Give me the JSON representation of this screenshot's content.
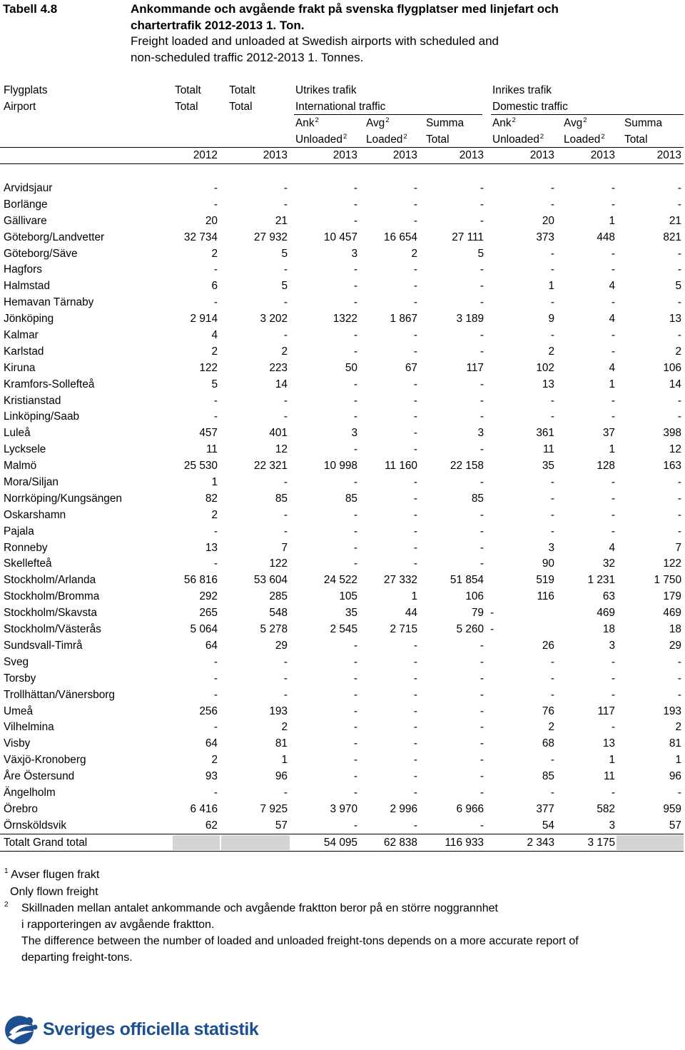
{
  "table": {
    "number": "Tabell 4.8",
    "title_sv_1": "Ankommande och avgående frakt på svenska flygplatser med linjefart och",
    "title_sv_2": "chartertrafik 2012-2013 1. Ton.",
    "title_en_1": "Freight loaded and unloaded at Swedish airports with scheduled and",
    "title_en_2": "non-scheduled traffic 2012-2013 1. Tonnes."
  },
  "header": {
    "airport_sv": "Flygplats",
    "airport_en": "Airport",
    "total_sv": "Totalt",
    "total_en": "Total",
    "intl_sv": "Utrikes trafik",
    "intl_en": "International traffic",
    "dom_sv": "Inrikes trafik",
    "dom_en": "Domestic traffic",
    "ank": "Ank",
    "unloaded": "Unloaded",
    "avg": "Avg",
    "loaded": "Loaded",
    "summa": "Summa",
    "total": "Total",
    "note_mark": "2",
    "years": [
      "2012",
      "2013",
      "2013",
      "2013",
      "2013",
      "2013",
      "2013",
      "2013"
    ]
  },
  "rows": [
    {
      "name": "Arvidsjaur",
      "v": [
        "-",
        "-",
        "-",
        "-",
        "-",
        "-",
        "-",
        "-"
      ]
    },
    {
      "name": "Borlänge",
      "v": [
        "-",
        "-",
        "-",
        "-",
        "-",
        "-",
        "-",
        "-"
      ]
    },
    {
      "name": "Gällivare",
      "v": [
        "20",
        "21",
        "-",
        "-",
        "-",
        "20",
        "1",
        "21"
      ]
    },
    {
      "name": "Göteborg/Landvetter",
      "v": [
        "32 734",
        "27 932",
        "10 457",
        "16 654",
        "27 111",
        "373",
        "448",
        "821"
      ]
    },
    {
      "name": "Göteborg/Säve",
      "v": [
        "2",
        "5",
        "3",
        "2",
        "5",
        "-",
        "-",
        "-"
      ]
    },
    {
      "name": "Hagfors",
      "v": [
        "-",
        "-",
        "-",
        "-",
        "-",
        "-",
        "-",
        "-"
      ]
    },
    {
      "name": "Halmstad",
      "v": [
        "6",
        "5",
        "-",
        "-",
        "-",
        "1",
        "4",
        "5"
      ]
    },
    {
      "name": "Hemavan Tärnaby",
      "v": [
        "-",
        "-",
        "-",
        "-",
        "-",
        "-",
        "-",
        "-"
      ]
    },
    {
      "name": "Jönköping",
      "v": [
        "2 914",
        "3 202",
        "1322",
        "1 867",
        "3 189",
        "9",
        "4",
        "13"
      ]
    },
    {
      "name": "Kalmar",
      "v": [
        "4",
        "-",
        "-",
        "-",
        "-",
        "-",
        "-",
        "-"
      ]
    },
    {
      "name": "Karlstad",
      "v": [
        "2",
        "2",
        "-",
        "-",
        "-",
        "2",
        "-",
        "2"
      ]
    },
    {
      "name": "Kiruna",
      "v": [
        "122",
        "223",
        "50",
        "67",
        "117",
        "102",
        "4",
        "106"
      ]
    },
    {
      "name": "Kramfors-Sollefteå",
      "v": [
        "5",
        "14",
        "-",
        "-",
        "-",
        "13",
        "1",
        "14"
      ]
    },
    {
      "name": "Kristianstad",
      "v": [
        "-",
        "-",
        "-",
        "-",
        "-",
        "-",
        "-",
        "-"
      ]
    },
    {
      "name": "Linköping/Saab",
      "v": [
        "-",
        "-",
        "-",
        "-",
        "-",
        "-",
        "-",
        "-"
      ]
    },
    {
      "name": "Luleå",
      "v": [
        "457",
        "401",
        "3",
        "-",
        "3",
        "361",
        "37",
        "398"
      ]
    },
    {
      "name": "Lycksele",
      "v": [
        "11",
        "12",
        "-",
        "-",
        "-",
        "11",
        "1",
        "12"
      ]
    },
    {
      "name": "Malmö",
      "v": [
        "25 530",
        "22 321",
        "10 998",
        "11 160",
        "22 158",
        "35",
        "128",
        "163"
      ]
    },
    {
      "name": "Mora/Siljan",
      "v": [
        "1",
        "-",
        "-",
        "-",
        "-",
        "-",
        "-",
        "-"
      ]
    },
    {
      "name": "Norrköping/Kungsängen",
      "v": [
        "82",
        "85",
        "85",
        "-",
        "85",
        "-",
        "-",
        "-"
      ]
    },
    {
      "name": "Oskarshamn",
      "v": [
        "2",
        "-",
        "-",
        "-",
        "-",
        "-",
        "-",
        "-"
      ]
    },
    {
      "name": "Pajala",
      "v": [
        "-",
        "-",
        "-",
        "-",
        "-",
        "-",
        "-",
        "-"
      ]
    },
    {
      "name": "Ronneby",
      "v": [
        "13",
        "7",
        "-",
        "-",
        "-",
        "3",
        "4",
        "7"
      ]
    },
    {
      "name": "Skellefteå",
      "v": [
        "-",
        "122",
        "-",
        "-",
        "-",
        "90",
        "32",
        "122"
      ]
    },
    {
      "name": "Stockholm/Arlanda",
      "v": [
        "56 816",
        "53 604",
        "24 522",
        "27 332",
        "51 854",
        "519",
        "1 231",
        "1 750"
      ]
    },
    {
      "name": "Stockholm/Bromma",
      "v": [
        "292",
        "285",
        "105",
        "1",
        "106",
        "116",
        "63",
        "179"
      ]
    },
    {
      "name": "Stockholm/Skavsta",
      "v": [
        "265",
        "548",
        "35",
        "44",
        "79",
        "-",
        "469",
        "469"
      ]
    },
    {
      "name": "Stockholm/Västerås",
      "v": [
        "5 064",
        "5 278",
        "2 545",
        "2 715",
        "5 260",
        "-",
        "18",
        "18"
      ]
    },
    {
      "name": "Sundsvall-Timrå",
      "v": [
        "64",
        "29",
        "-",
        "-",
        "-",
        "26",
        "3",
        "29"
      ]
    },
    {
      "name": "Sveg",
      "v": [
        "-",
        "-",
        "-",
        "-",
        "-",
        "-",
        "-",
        "-"
      ]
    },
    {
      "name": "Torsby",
      "v": [
        "-",
        "-",
        "-",
        "-",
        "-",
        "-",
        "-",
        "-"
      ]
    },
    {
      "name": "Trollhättan/Vänersborg",
      "v": [
        "-",
        "-",
        "-",
        "-",
        "-",
        "-",
        "-",
        "-"
      ]
    },
    {
      "name": "Umeå",
      "v": [
        "256",
        "193",
        "-",
        "-",
        "-",
        "76",
        "117",
        "193"
      ]
    },
    {
      "name": "Vilhelmina",
      "v": [
        "-",
        "2",
        "-",
        "-",
        "-",
        "2",
        "-",
        "2"
      ]
    },
    {
      "name": "Visby",
      "v": [
        "64",
        "81",
        "-",
        "-",
        "-",
        "68",
        "13",
        "81"
      ]
    },
    {
      "name": "Växjö-Kronoberg",
      "v": [
        "2",
        "1",
        "-",
        "-",
        "-",
        "-",
        "1",
        "1"
      ]
    },
    {
      "name": "Åre Östersund",
      "v": [
        "93",
        "96",
        "-",
        "-",
        "-",
        "85",
        "11",
        "96"
      ]
    },
    {
      "name": "Ängelholm",
      "v": [
        "-",
        "-",
        "-",
        "-",
        "-",
        "-",
        "-",
        "-"
      ]
    },
    {
      "name": "Örebro",
      "v": [
        "6 416",
        "7 925",
        "3 970",
        "2 996",
        "6 966",
        "377",
        "582",
        "959"
      ]
    },
    {
      "name": "Örnsköldsvik",
      "v": [
        "62",
        "57",
        "-",
        "-",
        "-",
        "54",
        "3",
        "57"
      ]
    }
  ],
  "total_row": {
    "name": "Totalt Grand total",
    "v": [
      "",
      "",
      "54 095",
      "62 838",
      "116 933",
      "2 343",
      "3 175",
      ""
    ]
  },
  "footnotes": {
    "n1_mark": "1",
    "n1_sv": "Avser flugen frakt",
    "n1_en": "Only flown freight",
    "n2_mark": "2",
    "n2_sv_1": "Skillnaden mellan antalet ankommande och avgående fraktton beror på en större noggrannhet",
    "n2_sv_2": "i rapporteringen av avgående fraktton.",
    "n2_en_1": "The difference between the number of loaded and unloaded freight-tons depends on a more accurate report of",
    "n2_en_2": "departing freight-tons."
  },
  "logo": {
    "text": "Sveriges officiella statistik",
    "color": "#1d4f91"
  }
}
